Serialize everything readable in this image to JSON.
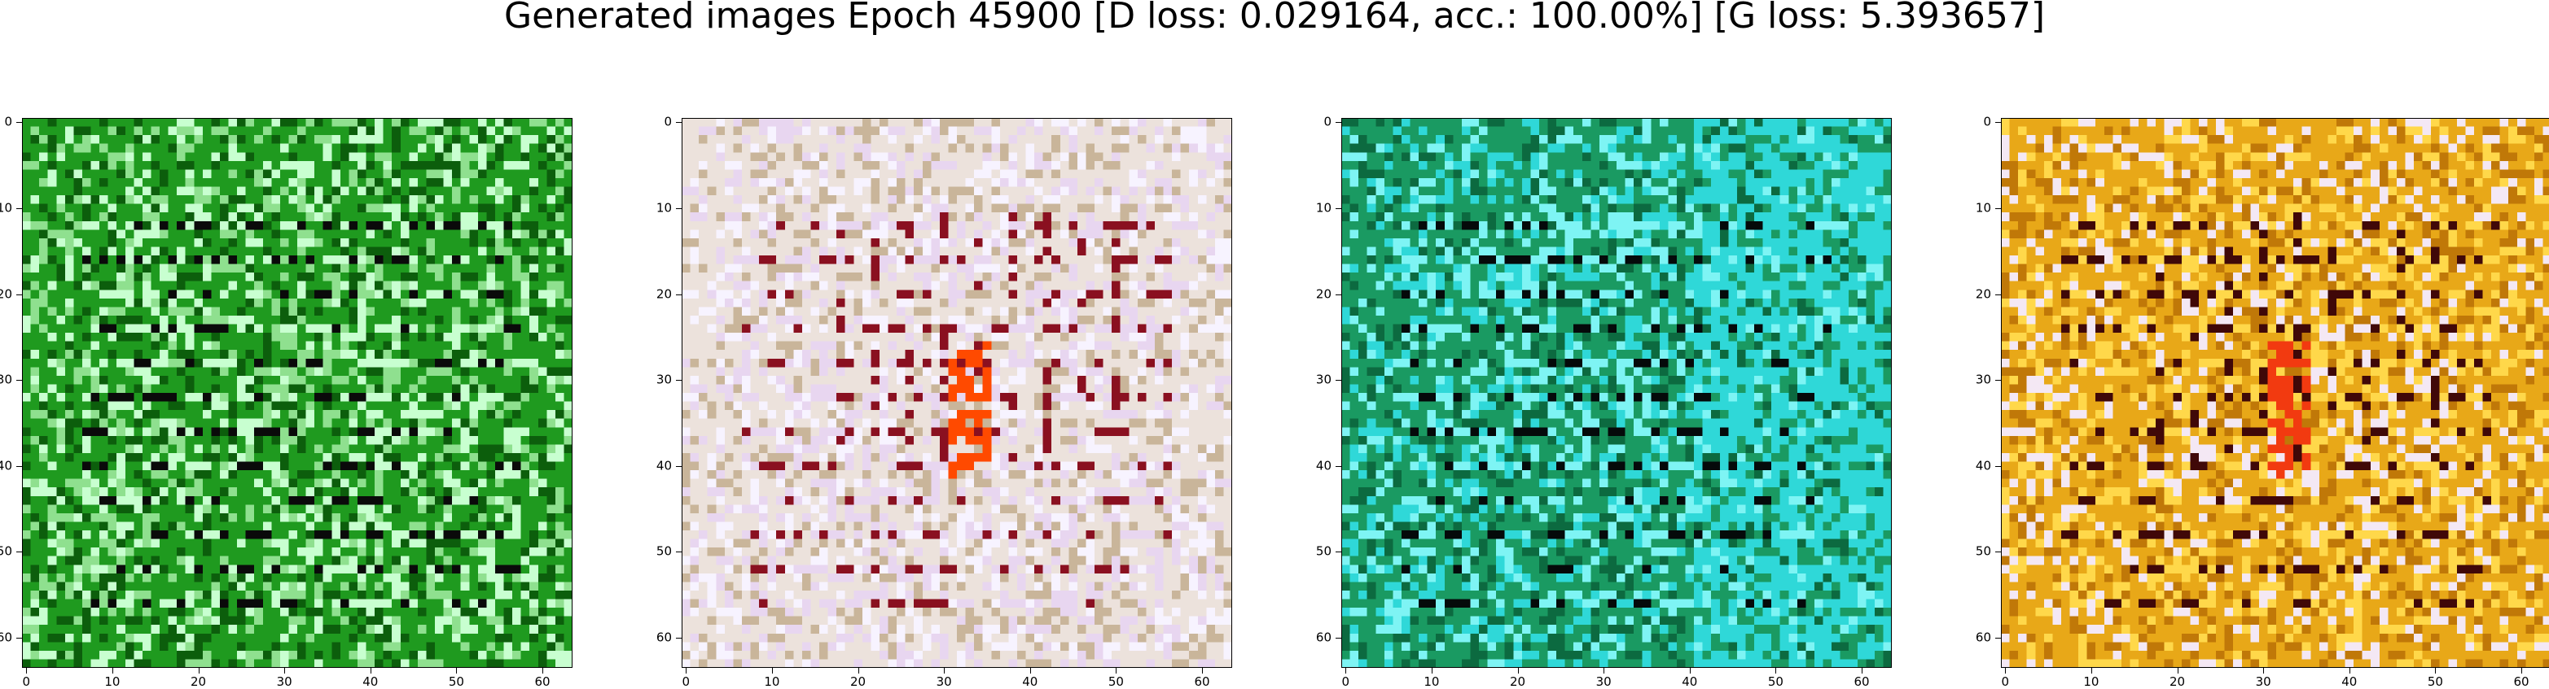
{
  "title": "Generated images Epoch 45900 [D loss: 0.029164, acc.: 100.00%] [G loss: 5.393657]",
  "axis_ticks": [
    "0",
    "10",
    "20",
    "30",
    "40",
    "50",
    "60"
  ],
  "image_size": 64,
  "panels": [
    {
      "name": "panel-1",
      "base": "#1f9a1f",
      "dark": "#0c5e0c",
      "light": "#8fe08f",
      "line": "#0a0a0a",
      "bright": "#c8ffd0",
      "accent": "#ffffff"
    },
    {
      "name": "panel-2",
      "base": "#ece2dc",
      "dark": "#c9b59a",
      "light": "#f7f3ff",
      "line": "#8a1020",
      "bright": "#e8d6f0",
      "accent": "#ff4a00"
    },
    {
      "name": "panel-3",
      "base": "#1a9a62",
      "dark": "#0c6a40",
      "light": "#2fd8d8",
      "line": "#050a0a",
      "bright": "#7ef4f4",
      "accent": "#c8fff0"
    },
    {
      "name": "panel-4",
      "base": "#e8a818",
      "dark": "#c07808",
      "light": "#f4e8f4",
      "line": "#400808",
      "bright": "#ffd84a",
      "accent": "#f23a10"
    }
  ]
}
